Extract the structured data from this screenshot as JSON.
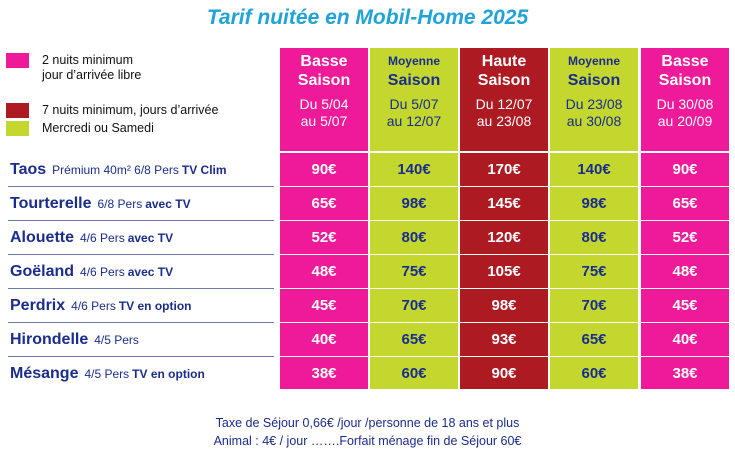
{
  "title": "Tarif nuitée en Mobil-Home  2025",
  "colors": {
    "pink": "#ee1a9a",
    "green": "#c3d72f",
    "red": "#ad1a22",
    "text_blue": "#1a2d8c",
    "title_blue": "#1fa3d8"
  },
  "legend": [
    {
      "color": "#ee1a9a",
      "line1": "2 nuits minimum",
      "line2": "jour d’arrivée libre"
    },
    {
      "color": "#ad1a22",
      "line1": "7 nuits minimum, jours d’arrivée",
      "line2": ""
    },
    {
      "color": "#c3d72f",
      "line1": "Mercredi ou Samedi",
      "line2": ""
    }
  ],
  "seasons": [
    {
      "line1": "Basse",
      "line2": "Saison",
      "from": "Du 5/04",
      "to": "au 5/07",
      "color": "#ee1a9a",
      "light": false
    },
    {
      "line1": "Moyenne",
      "line2": "Saison",
      "from": "Du 5/07",
      "to": "au 12/07",
      "color": "#c3d72f",
      "light": true
    },
    {
      "line1": "Haute",
      "line2": "Saison",
      "from": "Du 12/07",
      "to": "au 23/08",
      "color": "#ad1a22",
      "light": false
    },
    {
      "line1": "Moyenne",
      "line2": "Saison",
      "from": "Du 23/08",
      "to": "au 30/08",
      "color": "#c3d72f",
      "light": true
    },
    {
      "line1": "Basse",
      "line2": "Saison",
      "from": "Du 30/08",
      "to": "au 20/09",
      "color": "#ee1a9a",
      "light": false
    }
  ],
  "rows": [
    {
      "name": "Taos",
      "desc": "Prémium 40m² 6/8 Pers",
      "extra": "TV Clim",
      "prices": [
        "90€",
        "140€",
        "170€",
        "140€",
        "90€"
      ]
    },
    {
      "name": "Tourterelle",
      "desc": "6/8 Pers",
      "extra": "avec TV",
      "prices": [
        "65€",
        "98€",
        "145€",
        "98€",
        "65€"
      ]
    },
    {
      "name": "Alouette",
      "desc": "4/6 Pers",
      "extra": "avec TV",
      "prices": [
        "52€",
        "80€",
        "120€",
        "80€",
        "52€"
      ]
    },
    {
      "name": "Goëland",
      "desc": "4/6 Pers",
      "extra": "avec TV",
      "prices": [
        "48€",
        "75€",
        "105€",
        "75€",
        "48€"
      ]
    },
    {
      "name": "Perdrix",
      "desc": "4/6 Pers",
      "extra": "TV en option",
      "prices": [
        "45€",
        "70€",
        "98€",
        "70€",
        "45€"
      ]
    },
    {
      "name": "Hirondelle",
      "desc": "4/5 Pers",
      "extra": "",
      "prices": [
        "40€",
        "65€",
        "93€",
        "65€",
        "40€"
      ]
    },
    {
      "name": "Mésange",
      "desc": "4/5 Pers",
      "extra": "TV en option",
      "prices": [
        "38€",
        "60€",
        "90€",
        "60€",
        "38€"
      ]
    }
  ],
  "footer": {
    "line1": "Taxe de Séjour   0,66€ /jour /personne de 18 ans et plus",
    "line2": "Animal : 4€ / jour …….Forfait ménage fin de Séjour 60€"
  }
}
